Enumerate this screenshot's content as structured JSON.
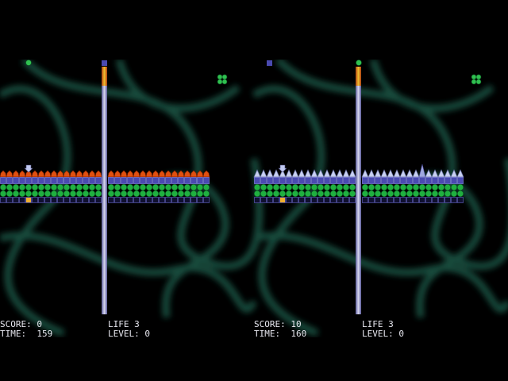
{
  "players": [
    {
      "score": "SCORE: 0",
      "time": "TIME:  159",
      "life": "LIFE 3",
      "level": "LEVEL: 0"
    },
    {
      "score": "SCORE: 10",
      "time": "TIME:  160",
      "life": "LIFE 3",
      "level": "LEVEL: 0"
    }
  ]
}
